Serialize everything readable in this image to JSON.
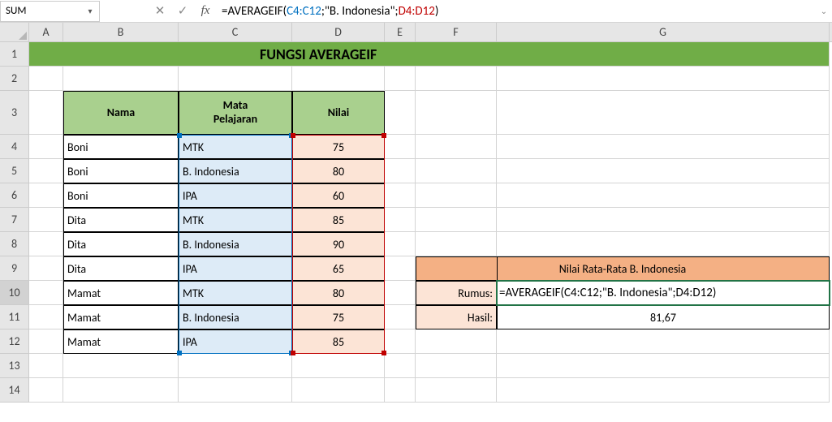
{
  "formula_bar": {
    "name_box": "SUM",
    "formula_parts": {
      "p1": "=AVERAGEIF(",
      "p2": "C4:C12",
      "p3": ";\"B. Indonesia\";",
      "p4": "D4:D12",
      "p5": ")"
    }
  },
  "columns": [
    "A",
    "B",
    "C",
    "D",
    "E",
    "F",
    "G"
  ],
  "column_widths": {
    "A": 42,
    "B": 142,
    "C": 140,
    "D": 114,
    "E": 38,
    "F": 100,
    "G": 410
  },
  "rows": [
    "1",
    "2",
    "3",
    "4",
    "5",
    "6",
    "7",
    "8",
    "9",
    "10",
    "11",
    "12",
    "13",
    "14"
  ],
  "title": "FUNGSI AVERAGEIF",
  "table_headers": {
    "nama": "Nama",
    "mapel_l1": "Mata",
    "mapel_l2": "Pelajaran",
    "nilai": "Nilai"
  },
  "table": [
    {
      "nama": "Boni",
      "mapel": "MTK",
      "nilai": "75"
    },
    {
      "nama": "Boni",
      "mapel": "B. Indonesia",
      "nilai": "80"
    },
    {
      "nama": "Boni",
      "mapel": "IPA",
      "nilai": "60"
    },
    {
      "nama": "Dita",
      "mapel": "MTK",
      "nilai": "85"
    },
    {
      "nama": "Dita",
      "mapel": "B. Indonesia",
      "nilai": "90"
    },
    {
      "nama": "Dita",
      "mapel": "IPA",
      "nilai": "65"
    },
    {
      "nama": "Mamat",
      "mapel": "MTK",
      "nilai": "80"
    },
    {
      "nama": "Mamat",
      "mapel": "B. Indonesia",
      "nilai": "75"
    },
    {
      "nama": "Mamat",
      "mapel": "IPA",
      "nilai": "85"
    }
  ],
  "side": {
    "header": "Nilai Rata-Rata B. Indonesia",
    "rumus_label": "Rumus:",
    "hasil_label": "Hasil:",
    "rumus_value": "=AVERAGEIF(C4:C12;\"B. Indonesia\";D4:D12)",
    "hasil_value": "81,67"
  },
  "colors": {
    "title_bg": "#70ad47",
    "header_bg": "#a9d08e",
    "blue_bg": "#ddebf7",
    "pink_bg": "#fce4d6",
    "orange_bg": "#f4b084",
    "range_blue": "#0070c0",
    "range_red": "#c00000",
    "excel_green": "#217346"
  }
}
